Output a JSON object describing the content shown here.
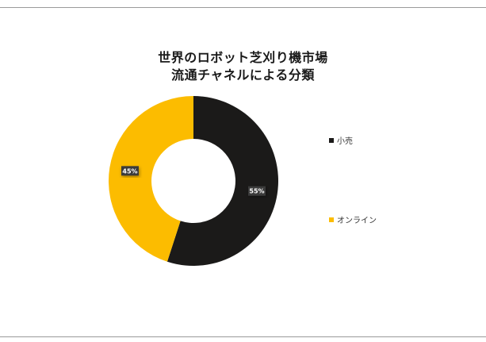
{
  "colors": {
    "retail": "#1b1a19",
    "online": "#fcbc00",
    "label_bg": "#3b3b3b",
    "label_text": "#ffffff"
  },
  "chart_data": {
    "type": "pie",
    "title_lines": [
      "世界のロボット芝刈り機市場",
      "流通チャネルによる分類"
    ],
    "donut": true,
    "categories": [
      "小売",
      "オンライン"
    ],
    "values": [
      55,
      45
    ],
    "data_labels": [
      "55%",
      "45%"
    ],
    "legend_position": "right",
    "grid": false
  }
}
